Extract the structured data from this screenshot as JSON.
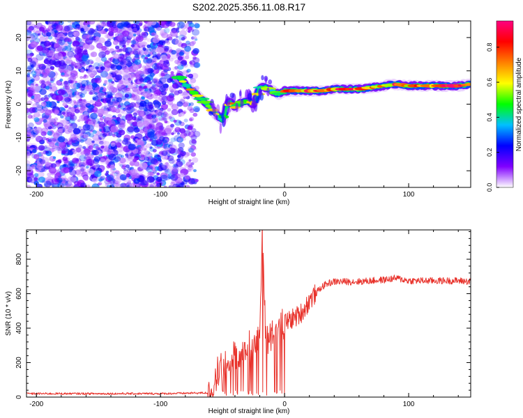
{
  "title": "S202.2025.356.11.08.R17",
  "chart_data": [
    {
      "type": "heatmap",
      "xlabel": "Height of straight line (km)",
      "ylabel": "Frequency (Hz)",
      "xlim": [
        -208,
        150
      ],
      "ylim": [
        -25,
        25
      ],
      "xticks": [
        -200,
        -100,
        0,
        100
      ],
      "yticks": [
        -20,
        -10,
        0,
        10,
        20
      ],
      "noise_region_x": [
        -208,
        -70
      ],
      "ridge": {
        "x": [
          -85,
          -80,
          -75,
          -70,
          -65,
          -60,
          -55,
          -50,
          -45,
          -40,
          -35,
          -30,
          -25,
          -20,
          -15,
          -10,
          -5,
          0,
          10,
          20,
          30,
          40,
          50,
          60,
          70,
          80,
          90,
          100,
          110,
          120,
          130,
          140,
          150
        ],
        "y": [
          8,
          6,
          4,
          2.5,
          1,
          -1,
          -3,
          -5,
          1,
          -1,
          0.5,
          1,
          0,
          5,
          5,
          4,
          3,
          4,
          4,
          4,
          4,
          4.5,
          4.5,
          4.5,
          5,
          5.5,
          6,
          5.5,
          5.5,
          5.5,
          5.5,
          5.5,
          6
        ]
      },
      "colorbar": {
        "label": "Normalized spectral amplitude",
        "range": [
          0,
          0.95
        ],
        "ticks": [
          "0.0",
          "0.2",
          "0.4",
          "0.6",
          "0.8"
        ],
        "tick_values": [
          0,
          0.2,
          0.4,
          0.6,
          0.8
        ],
        "colors": [
          "#ffffff",
          "#8000ff",
          "#0000ff",
          "#00c0ff",
          "#00ff00",
          "#ffff00",
          "#ff8000",
          "#ff0000",
          "#ff0080"
        ]
      }
    },
    {
      "type": "line",
      "xlabel": "Height of straight line (km)",
      "ylabel": "SNR (10 * v/v)",
      "xlim": [
        -208,
        150
      ],
      "ylim": [
        0,
        970
      ],
      "xticks": [
        -200,
        -100,
        0,
        100
      ],
      "yticks": [
        0,
        200,
        400,
        600,
        800
      ],
      "series": [
        {
          "name": "SNR",
          "color": "#e8312a",
          "x": [
            -208,
            -100,
            -60,
            -55,
            -50,
            -45,
            -40,
            -35,
            -30,
            -25,
            -20,
            -18,
            -15,
            -10,
            -5,
            0,
            5,
            10,
            15,
            20,
            25,
            30,
            35,
            40,
            50,
            60,
            70,
            80,
            90,
            100,
            110,
            120,
            130,
            140,
            150
          ],
          "y": [
            20,
            20,
            25,
            100,
            200,
            180,
            250,
            200,
            300,
            280,
            350,
            950,
            330,
            380,
            400,
            430,
            450,
            470,
            500,
            560,
            600,
            640,
            660,
            670,
            670,
            670,
            675,
            680,
            690,
            675,
            675,
            675,
            675,
            675,
            670
          ]
        }
      ]
    }
  ]
}
